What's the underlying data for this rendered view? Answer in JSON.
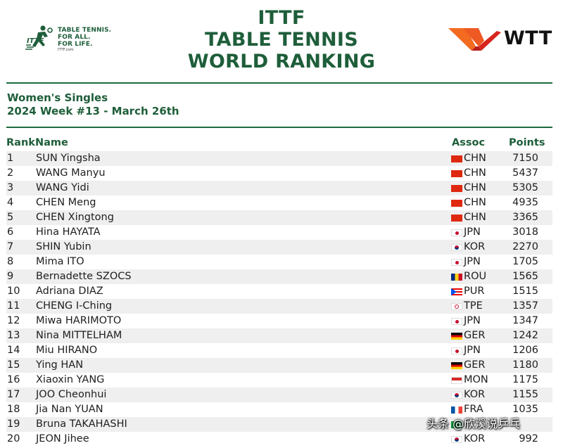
{
  "header": {
    "ittf_logo_lines": [
      "TABLE TENNIS.",
      "FOR ALL.",
      "FOR LIFE."
    ],
    "ittf_logo_url": "ITTF.com",
    "title_lines": [
      "ITTF",
      "TABLE TENNIS",
      "WORLD RANKING"
    ],
    "wtt_text": "WTT"
  },
  "subtitle": {
    "category": "Women's Singles",
    "week": "2024 Week #13 - March 26th"
  },
  "table": {
    "headers": {
      "rank": "Rank",
      "name": "Name",
      "assoc": "Assoc",
      "points": "Points"
    },
    "rows": [
      {
        "rank": "1",
        "name": "SUN Yingsha",
        "assoc": "CHN",
        "points": "7150",
        "flag": "cn"
      },
      {
        "rank": "2",
        "name": "WANG Manyu",
        "assoc": "CHN",
        "points": "5437",
        "flag": "cn"
      },
      {
        "rank": "3",
        "name": "WANG Yidi",
        "assoc": "CHN",
        "points": "5305",
        "flag": "cn"
      },
      {
        "rank": "4",
        "name": "CHEN Meng",
        "assoc": "CHN",
        "points": "4935",
        "flag": "cn"
      },
      {
        "rank": "5",
        "name": "CHEN Xingtong",
        "assoc": "CHN",
        "points": "3365",
        "flag": "cn"
      },
      {
        "rank": "6",
        "name": "Hina HAYATA",
        "assoc": "JPN",
        "points": "3018",
        "flag": "jp"
      },
      {
        "rank": "7",
        "name": "SHIN Yubin",
        "assoc": "KOR",
        "points": "2270",
        "flag": "kr"
      },
      {
        "rank": "8",
        "name": "Mima ITO",
        "assoc": "JPN",
        "points": "1705",
        "flag": "jp"
      },
      {
        "rank": "9",
        "name": "Bernadette SZOCS",
        "assoc": "ROU",
        "points": "1565",
        "flag": "ro"
      },
      {
        "rank": "10",
        "name": "Adriana DIAZ",
        "assoc": "PUR",
        "points": "1515",
        "flag": "pr"
      },
      {
        "rank": "11",
        "name": "CHENG I-Ching",
        "assoc": "TPE",
        "points": "1357",
        "flag": "tpe"
      },
      {
        "rank": "12",
        "name": "Miwa HARIMOTO",
        "assoc": "JPN",
        "points": "1347",
        "flag": "jp"
      },
      {
        "rank": "13",
        "name": "Nina MITTELHAM",
        "assoc": "GER",
        "points": "1242",
        "flag": "de"
      },
      {
        "rank": "14",
        "name": "Miu HIRANO",
        "assoc": "JPN",
        "points": "1206",
        "flag": "jp"
      },
      {
        "rank": "15",
        "name": "Ying HAN",
        "assoc": "GER",
        "points": "1180",
        "flag": "de"
      },
      {
        "rank": "16",
        "name": "Xiaoxin YANG",
        "assoc": "MON",
        "points": "1175",
        "flag": "mn"
      },
      {
        "rank": "17",
        "name": "JOO Cheonhui",
        "assoc": "KOR",
        "points": "1155",
        "flag": "kr"
      },
      {
        "rank": "18",
        "name": "Jia Nan YUAN",
        "assoc": "FRA",
        "points": "1035",
        "flag": "fr"
      },
      {
        "rank": "19",
        "name": "Bruna TAKAHASHI",
        "assoc": "",
        "points": "",
        "flag": "br"
      },
      {
        "rank": "20",
        "name": "JEON Jihee",
        "assoc": "KOR",
        "points": "992",
        "flag": "kr"
      }
    ]
  },
  "watermark": "头条 @欣溪说乒乓",
  "colors": {
    "brand_green": "#1e5e3a",
    "rule_green": "#1e6b3d",
    "row_alt": "#efefef",
    "wtt_orange": "#f26b21",
    "wtt_red": "#d7261e"
  }
}
